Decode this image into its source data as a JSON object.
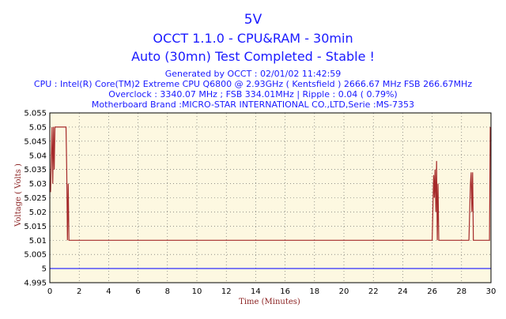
{
  "header": {
    "title": "5V",
    "subtitle1": "OCCT 1.1.0 - CPU&RAM - 30min",
    "subtitle2": "Auto (30mn) Test Completed - Stable !",
    "generated": "Generated by OCCT : 02/01/02 11:42:59",
    "cpu": "CPU : Intel(R) Core(TM)2 Extreme CPU Q6800  @ 2.93GHz ( Kentsfield ) 2666.67 MHz FSB 266.67MHz",
    "overclock": "Overclock : 3340.07 MHz ; FSB 334.01MHz | Ripple : 0.04 ( 0.79%)",
    "motherboard": "Motherboard Brand :MICRO-STAR INTERNATIONAL CO.,LTD,Serie :MS-7353"
  },
  "colors": {
    "title": "#1a1aff",
    "plot_background": "#fdf8e1",
    "voltage_line": "#a52a2a",
    "reference_line": "#1a1aff",
    "grid": "#555555",
    "axis_label": "#8b2222"
  },
  "chart_data": {
    "type": "line",
    "xlabel": "Time (Minutes)",
    "ylabel": "Voltage ( Volts )",
    "xlim": [
      0,
      30
    ],
    "ylim": [
      4.995,
      5.055
    ],
    "grid": true,
    "x_ticks": [
      "0",
      "2",
      "4",
      "6",
      "8",
      "10",
      "12",
      "14",
      "16",
      "18",
      "20",
      "22",
      "24",
      "26",
      "28",
      "30"
    ],
    "y_ticks": [
      "5.055",
      "5.05",
      "5.045",
      "5.04",
      "5.035",
      "5.03",
      "5.025",
      "5.02",
      "5.015",
      "5.01",
      "5.005",
      "5",
      "4.995"
    ],
    "reference_line": 5.0,
    "series": [
      {
        "x": [
          0.05,
          0.15,
          0.2,
          0.25,
          0.3,
          0.35,
          0.4,
          0.5,
          1.1,
          1.15,
          1.2,
          1.25,
          1.3,
          1.4,
          26.0,
          26.1,
          26.15,
          26.2,
          26.25,
          26.3,
          26.35,
          26.4,
          26.45,
          26.5,
          26.6,
          28.5,
          28.6,
          28.65,
          28.7,
          28.75,
          28.8,
          28.85,
          28.9,
          29.0,
          29.9,
          29.95,
          30.0
        ],
        "y": [
          5.027,
          5.05,
          5.03,
          5.05,
          5.035,
          5.05,
          5.05,
          5.05,
          5.05,
          5.035,
          5.01,
          5.03,
          5.01,
          5.01,
          5.01,
          5.033,
          5.025,
          5.035,
          5.02,
          5.038,
          5.01,
          5.03,
          5.01,
          5.01,
          5.01,
          5.01,
          5.03,
          5.034,
          5.02,
          5.034,
          5.01,
          5.01,
          5.01,
          5.01,
          5.01,
          5.05,
          5.045
        ]
      }
    ]
  }
}
